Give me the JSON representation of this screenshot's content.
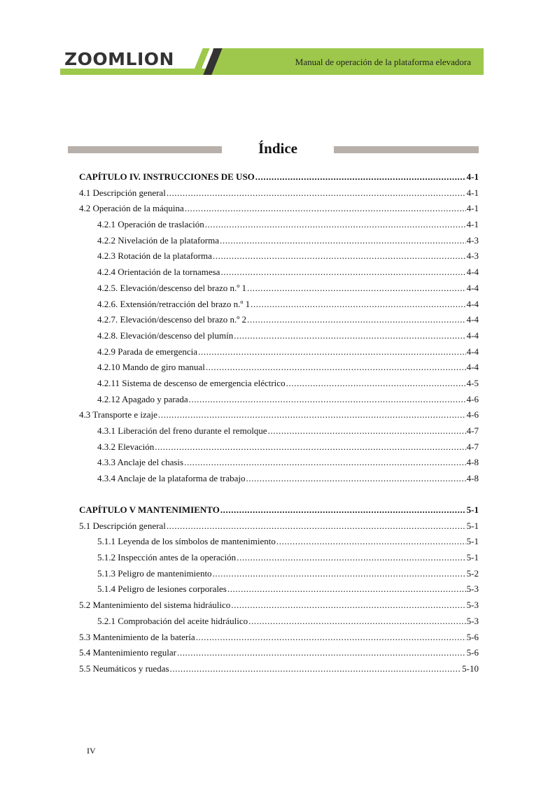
{
  "header": {
    "logo": "ZOOMLION",
    "title": "Manual de operación de la plataforma elevadora",
    "brand_color": "#9dc84b"
  },
  "page_title": "Índice",
  "sections": [
    {
      "entries": [
        {
          "level": "chapter",
          "label": "CAPÍTULO IV. INSTRUCCIONES DE USO",
          "page": "4-1"
        },
        {
          "level": 1,
          "label": "4.1 Descripción general",
          "page": "4-1"
        },
        {
          "level": 1,
          "label": "4.2 Operación de la máquina",
          "page": "4-1"
        },
        {
          "level": 2,
          "label": "4.2.1 Operación de traslación",
          "page": "4-1"
        },
        {
          "level": 2,
          "label": "4.2.2 Nivelación de la plataforma",
          "page": "4-3"
        },
        {
          "level": 2,
          "label": "4.2.3 Rotación de la plataforma",
          "page": "4-3"
        },
        {
          "level": 2,
          "label": "4.2.4 Orientación de la tornamesa",
          "page": "4-4"
        },
        {
          "level": 2,
          "label": "4.2.5. Elevación/descenso del brazo n.º 1",
          "page": "4-4"
        },
        {
          "level": 2,
          "label": "4.2.6. Extensión/retracción del brazo n.º 1",
          "page": "4-4"
        },
        {
          "level": 2,
          "label": "4.2.7. Elevación/descenso del brazo n.º 2",
          "page": "4-4"
        },
        {
          "level": 2,
          "label": "4.2.8. Elevación/descenso del plumín",
          "page": "4-4"
        },
        {
          "level": 2,
          "label": "4.2.9 Parada de emergencia",
          "page": "4-4"
        },
        {
          "level": 2,
          "label": "4.2.10 Mando de giro manual",
          "page": "4-4"
        },
        {
          "level": 2,
          "label": "4.2.11 Sistema de descenso de emergencia eléctrico",
          "page": "4-5"
        },
        {
          "level": 2,
          "label": "4.2.12 Apagado y parada",
          "page": "4-6"
        },
        {
          "level": 1,
          "label": "4.3 Transporte e izaje",
          "page": "4-6"
        },
        {
          "level": 2,
          "label": "4.3.1 Liberación del freno durante el remolque",
          "page": "4-7"
        },
        {
          "level": 2,
          "label": "4.3.2 Elevación",
          "page": "4-7"
        },
        {
          "level": 2,
          "label": "4.3.3 Anclaje del chasis",
          "page": "4-8"
        },
        {
          "level": 2,
          "label": "4.3.4 Anclaje de la plataforma de trabajo",
          "page": "4-8"
        }
      ]
    },
    {
      "entries": [
        {
          "level": "chapter",
          "label": "CAPÍTULO V MANTENIMIENTO",
          "page": "5-1"
        },
        {
          "level": 1,
          "label": "5.1 Descripción general",
          "page": "5-1"
        },
        {
          "level": 2,
          "label": "5.1.1 Leyenda de los símbolos de mantenimiento",
          "page": "5-1"
        },
        {
          "level": 2,
          "label": "5.1.2 Inspección antes de la operación",
          "page": "5-1"
        },
        {
          "level": 2,
          "label": "5.1.3 Peligro de mantenimiento",
          "page": "5-2"
        },
        {
          "level": 2,
          "label": "5.1.4 Peligro de lesiones corporales",
          "page": "5-3"
        },
        {
          "level": 1,
          "label": "5.2 Mantenimiento del sistema hidráulico",
          "page": "5-3"
        },
        {
          "level": 2,
          "label": "5.2.1 Comprobación del aceite hidráulico",
          "page": "5-3"
        },
        {
          "level": 1,
          "label": "5.3 Mantenimiento de la batería",
          "page": "5-6"
        },
        {
          "level": 1,
          "label": "5.4 Mantenimiento regular",
          "page": "5-6"
        },
        {
          "level": 1,
          "label": "5.5 Neumáticos y ruedas",
          "page": "5-10"
        }
      ]
    }
  ],
  "footer": {
    "page_number": "IV"
  }
}
